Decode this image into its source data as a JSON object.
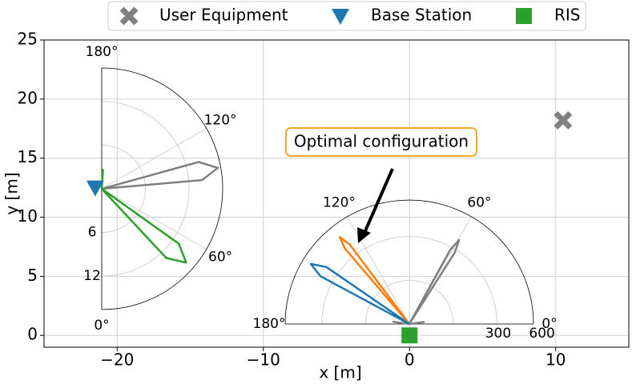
{
  "chart_data": [
    {
      "type": "scatter",
      "xlabel": "x [m]",
      "ylabel": "y [m]",
      "xlim": [
        -25,
        15
      ],
      "ylim": [
        -1,
        25
      ],
      "xticks": [
        {
          "value": -20,
          "label": "−20"
        },
        {
          "value": -10,
          "label": "−10"
        },
        0,
        10
      ],
      "yticks": [
        0,
        5,
        10,
        15,
        20,
        25
      ],
      "grid": true,
      "legend": "top",
      "series": [
        {
          "name": "User Equipment",
          "color": "#808080",
          "marker": "x",
          "x": [
            10.5
          ],
          "y": [
            18.2
          ]
        },
        {
          "name": "Base Station",
          "color": "#1f77b4",
          "marker": "v",
          "x": [
            -21.5
          ],
          "y": [
            12.5
          ]
        },
        {
          "name": "RIS",
          "color": "#2ca02c",
          "marker": "s",
          "x": [
            0
          ],
          "y": [
            0
          ]
        }
      ],
      "annotation": {
        "text": "Optimal configuration",
        "color": "#f5a623"
      }
    },
    {
      "type": "polar",
      "theta_zero": "S",
      "thetalim": [
        0,
        180
      ],
      "rlim": [
        0,
        16.6
      ],
      "thetaticks": [
        {
          "value": 0,
          "label": "0°"
        },
        {
          "value": 60,
          "label": "60°"
        },
        {
          "value": 120,
          "label": "120°"
        },
        {
          "value": 180,
          "label": "180°"
        }
      ],
      "rticks": [
        6,
        12
      ],
      "series": [
        {
          "color": "#808080",
          "theta": [
            90,
            95,
            100.2,
            105.5,
            111
          ],
          "r": [
            0,
            13.8,
            16.2,
            13.8,
            0
          ]
        },
        {
          "color": "#2ca02c",
          "theta": [
            36,
            43,
            48.8,
            54.5,
            62,
            165,
            176,
            180
          ],
          "r": [
            0,
            13,
            15.4,
            13,
            0,
            0,
            2.6,
            0
          ]
        }
      ]
    },
    {
      "type": "polar",
      "theta_zero": "E",
      "thetalim": [
        0,
        180
      ],
      "rlim": [
        0,
        850
      ],
      "thetaticks": [
        {
          "value": 0,
          "label": "0°"
        },
        {
          "value": 60,
          "label": "60°"
        },
        {
          "value": 120,
          "label": "120°"
        },
        {
          "value": 180,
          "label": "180°"
        }
      ],
      "rticks": [
        300,
        600
      ],
      "series": [
        {
          "color": "#808080",
          "theta": [
            0,
            8,
            20,
            54,
            57.6,
            59.4,
            61.2,
            65,
            160,
            172,
            180
          ],
          "r": [
            0,
            100,
            0,
            0,
            580,
            669,
            580,
            0,
            0,
            110,
            0
          ]
        },
        {
          "color": "#ff7f0e",
          "theta": [
            124,
            126.8,
            128.6,
            130.4,
            133
          ],
          "r": [
            0,
            680,
            763,
            680,
            0
          ]
        },
        {
          "color": "#1f77b4",
          "theta": [
            140,
            145.5,
            148.6,
            151.7,
            157
          ],
          "r": [
            0,
            690,
            790,
            690,
            0
          ]
        }
      ]
    }
  ]
}
